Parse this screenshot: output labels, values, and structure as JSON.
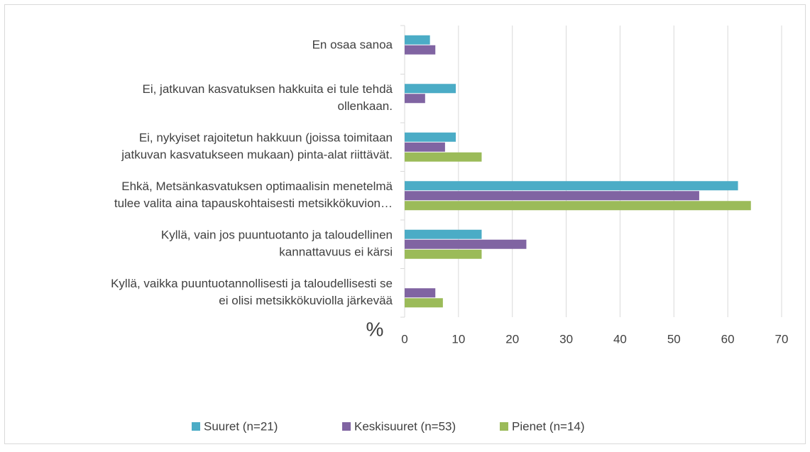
{
  "chart_data": {
    "type": "hbar",
    "categories": [
      [
        "En osaa sanoa"
      ],
      [
        "Ei, jatkuvan kasvatuksen hakkuita ei tule tehdä",
        "ollenkaan."
      ],
      [
        "Ei, nykyiset rajoitetun hakkuun (joissa toimitaan",
        "jatkuvan kasvatukseen mukaan) pinta-alat riittävät."
      ],
      [
        "Ehkä, Metsänkasvatuksen optimaalisin menetelmä",
        "tulee valita aina tapauskohtaisesti metsikkökuvion…"
      ],
      [
        "Kyllä, vain jos puuntuotanto ja taloudellinen",
        "kannattavuus ei kärsi"
      ],
      [
        "Kyllä, vaikka puuntuotannollisesti ja taloudellisesti se",
        "ei olisi metsikkökuviolla järkevää"
      ]
    ],
    "series": [
      {
        "name": "Suuret (n=21)",
        "color": "#4bacc6",
        "values": [
          4.7,
          9.5,
          9.5,
          61.9,
          14.3,
          0
        ]
      },
      {
        "name": "Keskisuuret (n=53)",
        "color": "#8064a2",
        "values": [
          5.7,
          3.8,
          7.5,
          54.7,
          22.6,
          5.7
        ]
      },
      {
        "name": "Pienet (n=14)",
        "color": "#9bbb59",
        "values": [
          0,
          0,
          14.3,
          64.3,
          14.3,
          7.1
        ]
      }
    ],
    "xlabel": "%",
    "xlim": [
      0,
      70
    ],
    "xticks": [
      0,
      10,
      20,
      30,
      40,
      50,
      60,
      70
    ],
    "grid": true,
    "legend": "bottom"
  }
}
